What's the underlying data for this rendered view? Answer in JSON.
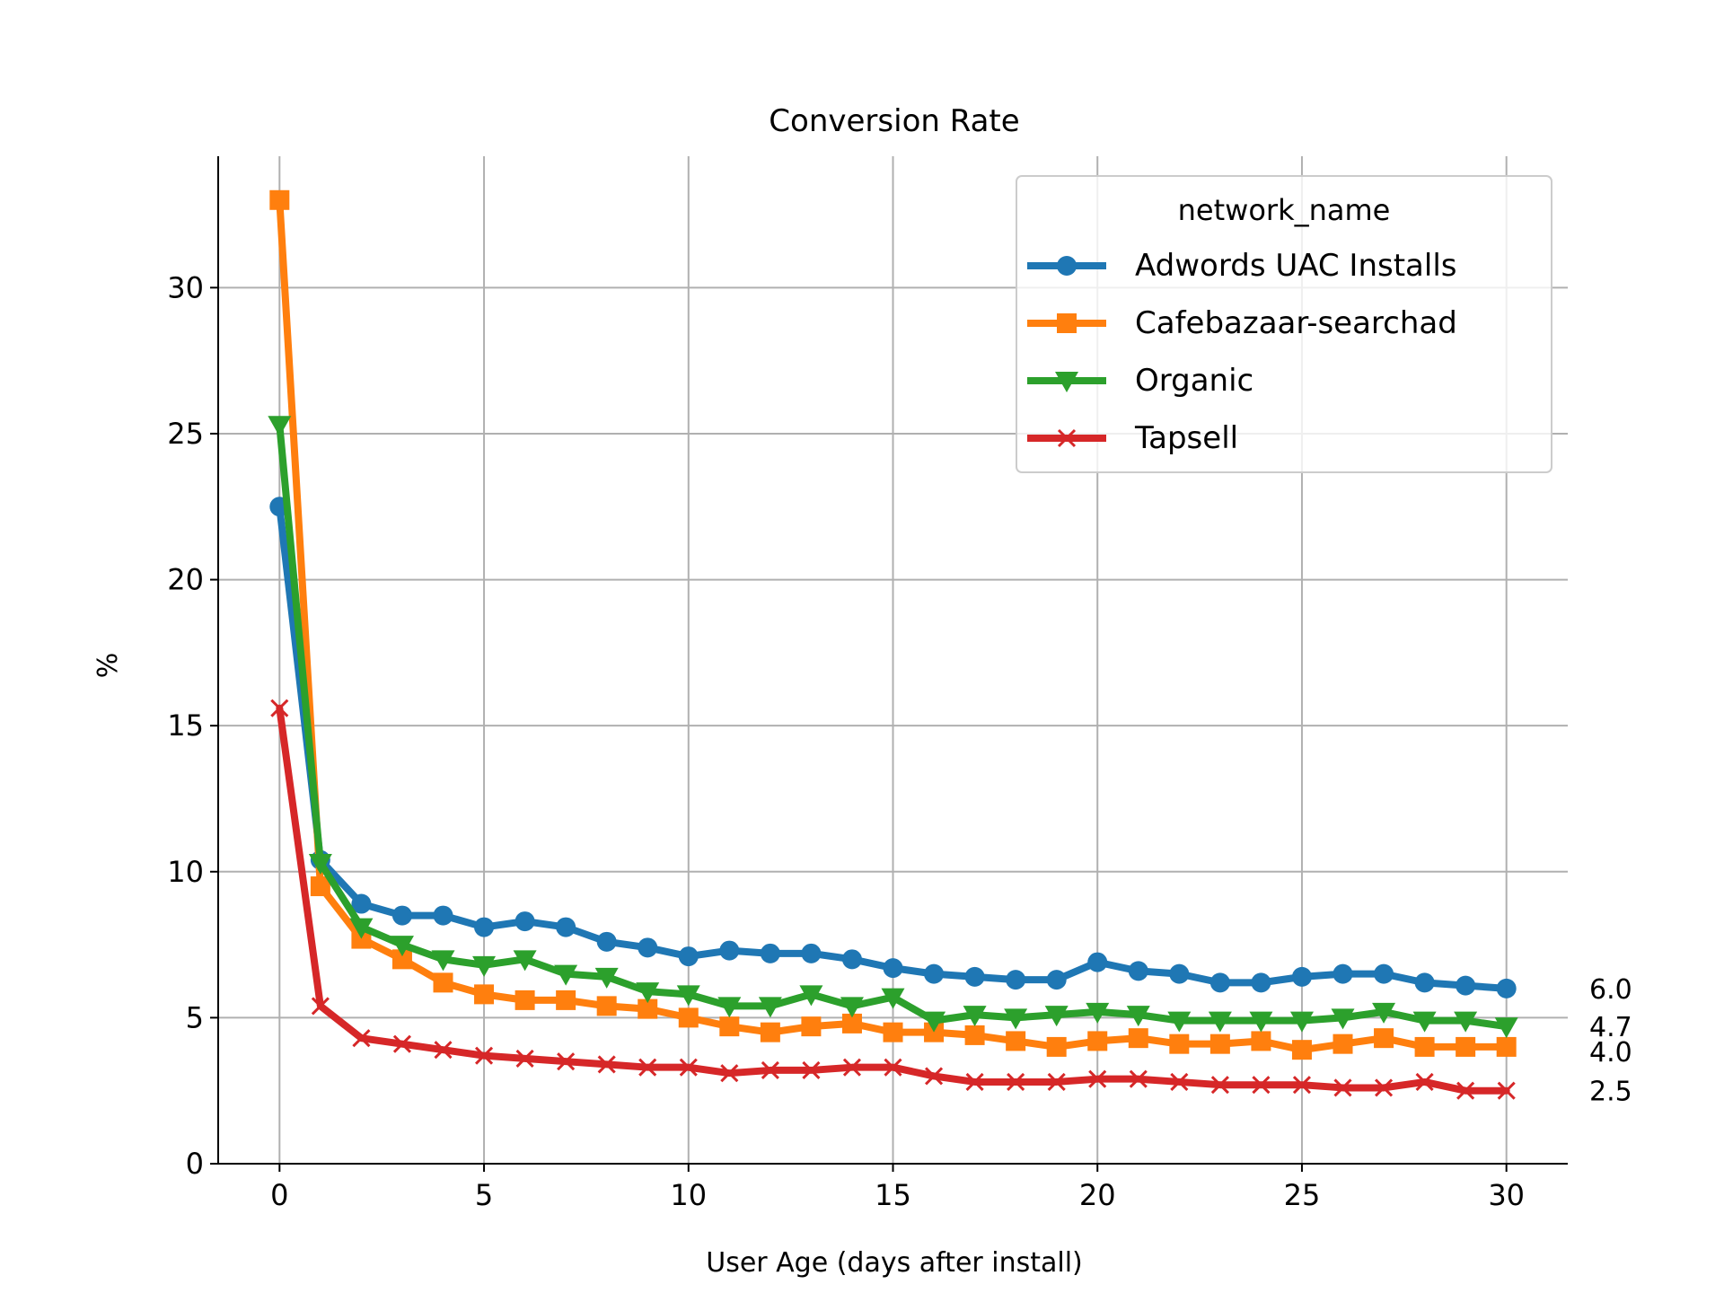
{
  "chart_data": {
    "type": "line",
    "title": "Conversion Rate",
    "xlabel": "User Age (days after install)",
    "ylabel": "%",
    "xlim": [
      -1.5,
      31.5
    ],
    "ylim": [
      0,
      34.5
    ],
    "xticks": [
      0,
      5,
      10,
      15,
      20,
      25,
      30
    ],
    "yticks": [
      0,
      5,
      10,
      15,
      20,
      25,
      30
    ],
    "grid": true,
    "legend": {
      "title": "network_name",
      "placement": "top-right"
    },
    "x": [
      0,
      1,
      2,
      3,
      4,
      5,
      6,
      7,
      8,
      9,
      10,
      11,
      12,
      13,
      14,
      15,
      16,
      17,
      18,
      19,
      20,
      21,
      22,
      23,
      24,
      25,
      26,
      27,
      28,
      29,
      30
    ],
    "series": [
      {
        "name": "Adwords UAC Installs",
        "color": "#1f77b4",
        "marker": "circle",
        "values": [
          22.5,
          10.4,
          8.9,
          8.5,
          8.5,
          8.1,
          8.3,
          8.1,
          7.6,
          7.4,
          7.1,
          7.3,
          7.2,
          7.2,
          7.0,
          6.7,
          6.5,
          6.4,
          6.3,
          6.3,
          6.9,
          6.6,
          6.5,
          6.2,
          6.2,
          6.4,
          6.5,
          6.5,
          6.2,
          6.1,
          6.0
        ],
        "end_label": "6.0"
      },
      {
        "name": "Cafebazaar-searchad",
        "color": "#ff7f0e",
        "marker": "square",
        "values": [
          33.0,
          9.5,
          7.7,
          7.0,
          6.2,
          5.8,
          5.6,
          5.6,
          5.4,
          5.3,
          5.0,
          4.7,
          4.5,
          4.7,
          4.8,
          4.5,
          4.5,
          4.4,
          4.2,
          4.0,
          4.2,
          4.3,
          4.1,
          4.1,
          4.2,
          3.9,
          4.1,
          4.3,
          4.0,
          4.0,
          4.0
        ],
        "end_label": "4.0"
      },
      {
        "name": "Organic",
        "color": "#2ca02c",
        "marker": "triangle-down",
        "values": [
          25.3,
          10.3,
          8.1,
          7.5,
          7.0,
          6.8,
          7.0,
          6.5,
          6.4,
          5.9,
          5.8,
          5.4,
          5.4,
          5.8,
          5.4,
          5.7,
          4.9,
          5.1,
          5.0,
          5.1,
          5.2,
          5.1,
          4.9,
          4.9,
          4.9,
          4.9,
          5.0,
          5.2,
          4.9,
          4.9,
          4.7
        ],
        "end_label": "4.7"
      },
      {
        "name": "Tapsell",
        "color": "#d62728",
        "marker": "x",
        "values": [
          15.6,
          5.4,
          4.3,
          4.1,
          3.9,
          3.7,
          3.6,
          3.5,
          3.4,
          3.3,
          3.3,
          3.1,
          3.2,
          3.2,
          3.3,
          3.3,
          3.0,
          2.8,
          2.8,
          2.8,
          2.9,
          2.9,
          2.8,
          2.7,
          2.7,
          2.7,
          2.6,
          2.6,
          2.8,
          2.5,
          2.5
        ],
        "end_label": "2.5"
      }
    ]
  }
}
